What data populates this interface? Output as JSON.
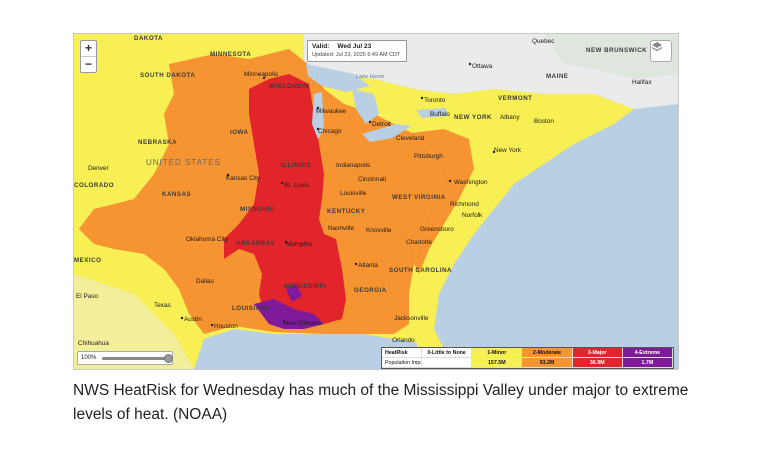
{
  "map": {
    "valid_label": "Valid:",
    "valid_date": "Wed  Jul 23",
    "updated": "Updated: Jul 23, 2025 6:49 AM CDT",
    "zoom_in": "+",
    "zoom_out": "−",
    "opacity_label": "100%",
    "opacity_value": 1.0,
    "states": [
      "DAKOTA",
      "MINNESOTA",
      "SOUTH DAKOTA",
      "WISCONSIN",
      "NEBRASKA",
      "UNITED STATES",
      "IOWA",
      "ILLINOIS",
      "KANSAS",
      "MISSOURI",
      "KENTUCKY",
      "WEST VIRGINIA",
      "ARKANSAS",
      "MISSISSIPPI",
      "LOUISIANA",
      "GEORGIA",
      "SOUTH CAROLINA",
      "NEW YORK",
      "MAINE",
      "VERMONT",
      "NEW BRUNSWICK",
      "COLORADO",
      "MEXICO"
    ],
    "cities": [
      "Minneapolis",
      "Milwaukee",
      "Chicago",
      "Detroit",
      "Toronto",
      "Ottawa",
      "Quebec",
      "Halifax",
      "Buffalo",
      "Albany",
      "Boston",
      "Cleveland",
      "Pittsburgh",
      "New York",
      "Denver",
      "Kansas City",
      "St. Louis",
      "Indianapolis",
      "Cincinnati",
      "Louisville",
      "Washington",
      "Richmond",
      "Norfolk",
      "Nashville",
      "Knoxville",
      "Greensboro",
      "Charlotte",
      "Oklahoma City",
      "Memphis",
      "Atlanta",
      "Dallas",
      "Texas",
      "Austin",
      "Houston",
      "New Orleans",
      "Jacksonville",
      "Chihuahua",
      "El Paso",
      "Orlando",
      "Lake Huron"
    ],
    "icons": [
      "layers-icon"
    ]
  },
  "legend": {
    "header_label": "HeatRisk",
    "population_label": "Population Impacted",
    "levels": [
      {
        "name": "0-Little to None",
        "population": "",
        "color": "#ffffff"
      },
      {
        "name": "1-Minor",
        "population": "157.5M",
        "color": "#f7ef54"
      },
      {
        "name": "2-Moderate",
        "population": "93.2M",
        "color": "#f79432"
      },
      {
        "name": "3-Major",
        "population": "36.9M",
        "color": "#e2252b"
      },
      {
        "name": "4-Extreme",
        "population": "1.7M",
        "color": "#7f1a9b"
      }
    ]
  },
  "caption": "NWS HeatRisk for Wednesday has much of the Mississippi Valley under major to extreme levels of heat. (NOAA)"
}
